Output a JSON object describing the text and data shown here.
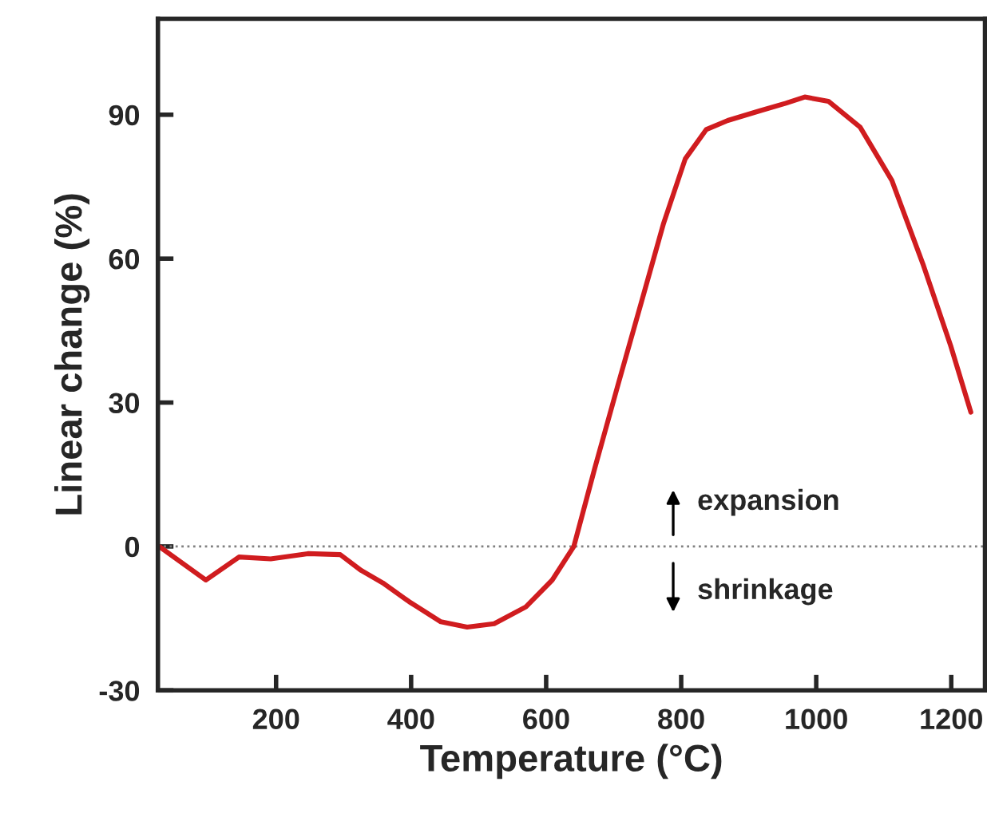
{
  "chart_data": {
    "type": "line",
    "xlabel": "Temperature (°C)",
    "ylabel": "Linear change (%)",
    "x": [
      27,
      96,
      145,
      192,
      247,
      295,
      326,
      358,
      397,
      444,
      483,
      523,
      570,
      609,
      641,
      672,
      707,
      743,
      774,
      806,
      837,
      869,
      916,
      955,
      983,
      1018,
      1065,
      1112,
      1159,
      1199,
      1229
    ],
    "series": [
      {
        "color": "#d01c1f",
        "values": [
          0,
          -7,
          -2.2,
          -2.6,
          -1.5,
          -1.7,
          -5,
          -7.6,
          -11.5,
          -15.7,
          -16.8,
          -16.1,
          -12.6,
          -7,
          0,
          16.3,
          34,
          51.9,
          67.4,
          80.8,
          86.9,
          88.8,
          90.8,
          92.4,
          93.7,
          92.8,
          87.4,
          76.3,
          58.5,
          41.9,
          28
        ]
      }
    ],
    "xlim": [
      25,
      1250
    ],
    "xticks": [
      200,
      400,
      600,
      800,
      1000,
      1200
    ],
    "ylim": [
      -30,
      110
    ],
    "yticks": [
      -30,
      0,
      30,
      60,
      90
    ],
    "ref_lines": [
      {
        "axis": "y",
        "value": 0,
        "color": "#808080",
        "line_style": "dotted"
      }
    ],
    "annotations": [
      "expansion",
      "shrinkage"
    ],
    "grid": false,
    "marker": "none",
    "line_style": "solid"
  }
}
